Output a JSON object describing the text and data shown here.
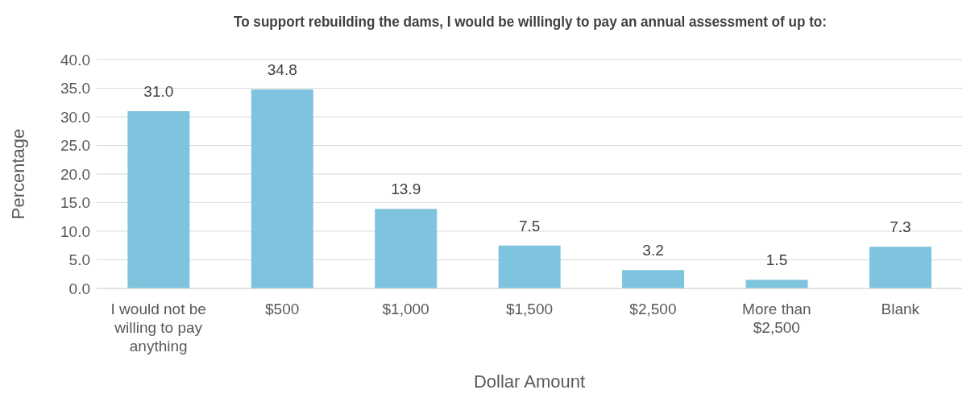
{
  "chart_data": {
    "type": "bar",
    "title": "To support rebuilding the dams, I would be willingly to pay an annual assessment of up to:",
    "xlabel": "Dollar Amount",
    "ylabel": "Percentage",
    "categories": [
      "I would not be willing to pay anything",
      "$500",
      "$1,000",
      "$1,500",
      "$2,500",
      "More than $2,500",
      "Blank"
    ],
    "values": [
      31.0,
      34.8,
      13.9,
      7.5,
      3.2,
      1.5,
      7.3
    ],
    "color": "#7fc4de",
    "ylim": [
      0,
      40
    ],
    "yticks": [
      {
        "value": 0,
        "label": "0.0"
      },
      {
        "value": 5,
        "label": "5.0"
      },
      {
        "value": 10,
        "label": "10.0"
      },
      {
        "value": 15,
        "label": "15.0"
      },
      {
        "value": 20,
        "label": "20.0"
      },
      {
        "value": 25,
        "label": "25.0"
      },
      {
        "value": 30,
        "label": "30.0"
      },
      {
        "value": 35,
        "label": "35.0"
      },
      {
        "value": 40,
        "label": "40.0"
      }
    ],
    "value_labels": [
      "31.0",
      "34.8",
      "13.9",
      "7.5",
      "3.2",
      "1.5",
      "7.3"
    ],
    "grid": "y"
  }
}
